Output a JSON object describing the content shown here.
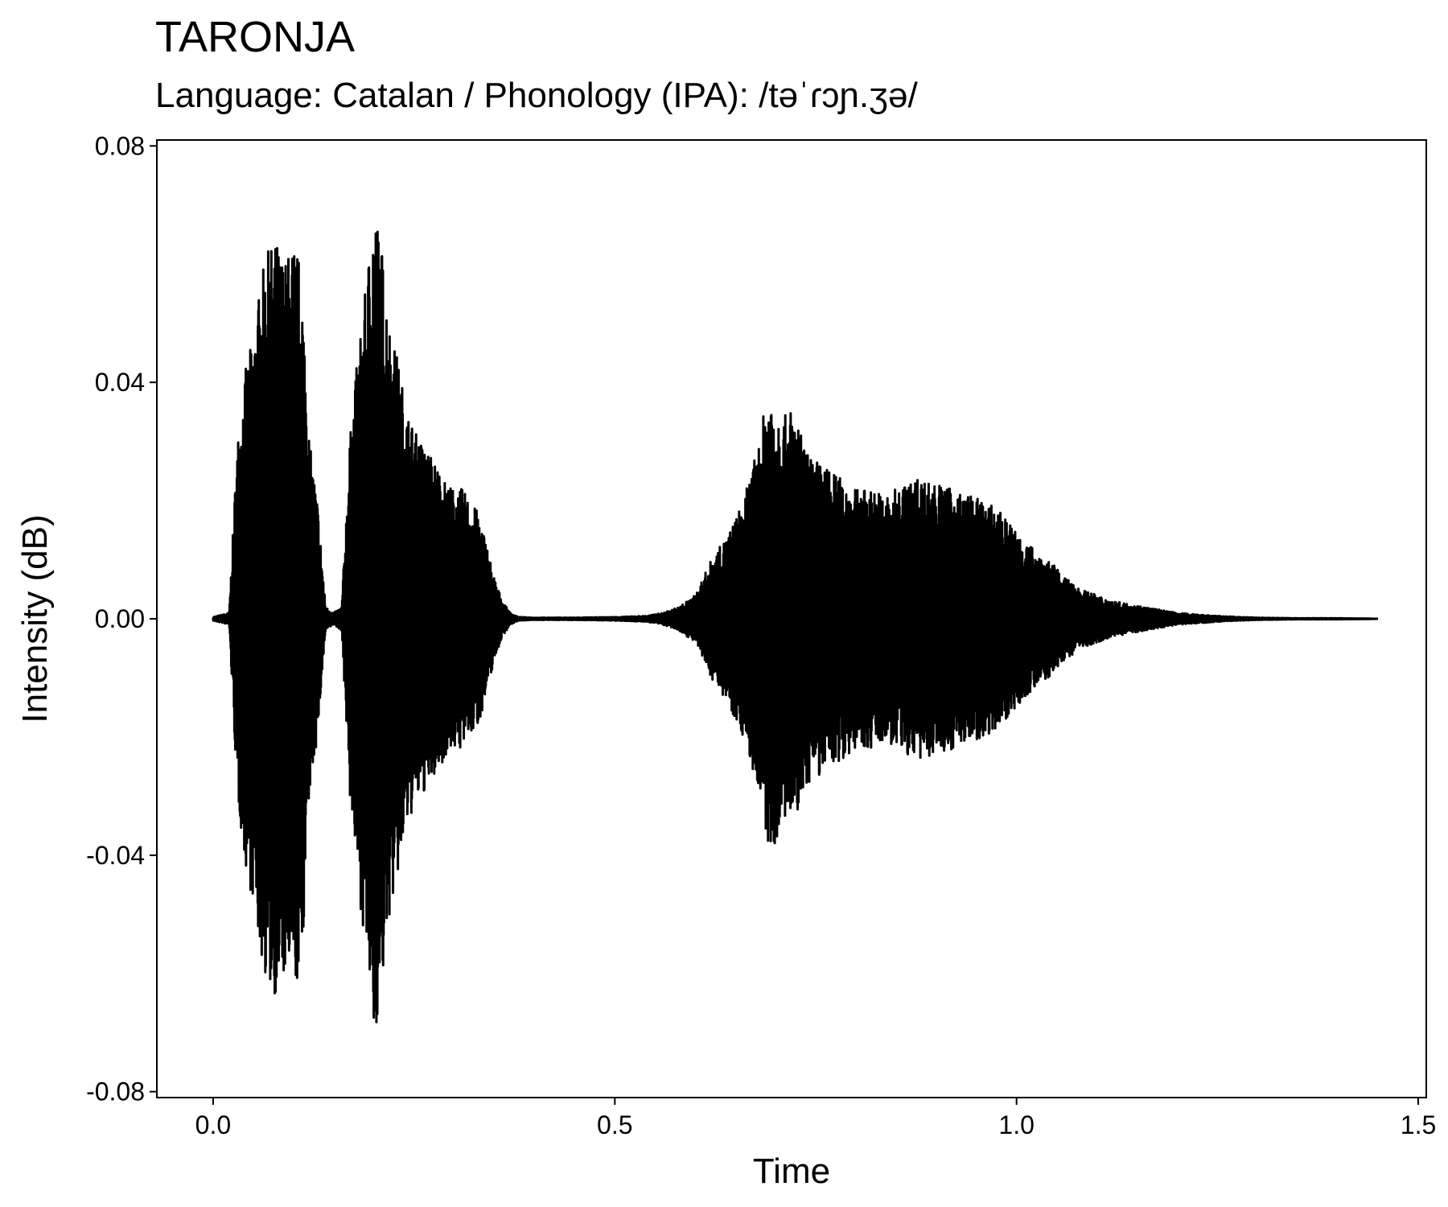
{
  "chart_data": {
    "type": "line",
    "title": "TARONJA",
    "subtitle": "Language: Catalan / Phonology (IPA): /təˈɾɔɲ.ʒə/",
    "xlabel": "Time",
    "ylabel": "Intensity (dB)",
    "xlim": [
      -0.07,
      1.51
    ],
    "ylim": [
      -0.081,
      0.081
    ],
    "x_ticks": [
      {
        "value": 0.0,
        "label": "0.0"
      },
      {
        "value": 0.5,
        "label": "0.5"
      },
      {
        "value": 1.0,
        "label": "1.0"
      },
      {
        "value": 1.5,
        "label": "1.5"
      }
    ],
    "y_ticks": [
      {
        "value": 0.08,
        "label": "0.08"
      },
      {
        "value": 0.04,
        "label": "0.04"
      },
      {
        "value": 0.0,
        "label": "0.00"
      },
      {
        "value": -0.04,
        "label": "-0.04"
      },
      {
        "value": -0.08,
        "label": "-0.08"
      }
    ],
    "grid": false,
    "legend": "none",
    "line_color": "#000000",
    "series": [
      {
        "x": [
          0.0,
          0.02,
          0.03,
          0.04,
          0.05,
          0.06,
          0.07,
          0.08,
          0.09,
          0.1,
          0.11,
          0.12,
          0.13,
          0.14,
          0.15,
          0.16,
          0.17,
          0.18,
          0.19,
          0.2,
          0.21,
          0.22,
          0.23,
          0.24,
          0.25,
          0.26,
          0.27,
          0.28,
          0.29,
          0.3,
          0.31,
          0.32,
          0.33,
          0.34,
          0.35,
          0.36,
          0.37,
          0.38,
          0.4,
          0.45,
          0.5,
          0.54,
          0.56,
          0.58,
          0.6,
          0.62,
          0.64,
          0.66,
          0.68,
          0.69,
          0.7,
          0.71,
          0.72,
          0.73,
          0.74,
          0.76,
          0.78,
          0.8,
          0.82,
          0.84,
          0.86,
          0.88,
          0.9,
          0.92,
          0.94,
          0.96,
          0.98,
          1.0,
          1.02,
          1.04,
          1.06,
          1.08,
          1.1,
          1.12,
          1.14,
          1.16,
          1.18,
          1.2,
          1.22,
          1.24,
          1.26,
          1.28,
          1.3,
          1.35,
          1.4,
          1.45
        ],
        "amplitude": [
          0.0003,
          0.001,
          0.03,
          0.042,
          0.048,
          0.058,
          0.063,
          0.064,
          0.061,
          0.064,
          0.06,
          0.03,
          0.02,
          0.002,
          0.001,
          0.002,
          0.03,
          0.045,
          0.056,
          0.072,
          0.063,
          0.05,
          0.044,
          0.036,
          0.032,
          0.03,
          0.028,
          0.026,
          0.023,
          0.022,
          0.022,
          0.02,
          0.018,
          0.013,
          0.007,
          0.003,
          0.001,
          0.0003,
          0.0002,
          0.0002,
          0.0003,
          0.0005,
          0.001,
          0.002,
          0.004,
          0.01,
          0.014,
          0.02,
          0.03,
          0.039,
          0.038,
          0.034,
          0.036,
          0.032,
          0.028,
          0.026,
          0.024,
          0.022,
          0.022,
          0.021,
          0.023,
          0.024,
          0.023,
          0.022,
          0.021,
          0.02,
          0.018,
          0.015,
          0.012,
          0.01,
          0.007,
          0.005,
          0.004,
          0.003,
          0.0025,
          0.002,
          0.0015,
          0.001,
          0.0008,
          0.0006,
          0.0004,
          0.0003,
          0.0002,
          0.0001,
          0.0001,
          0.0
        ]
      }
    ]
  }
}
